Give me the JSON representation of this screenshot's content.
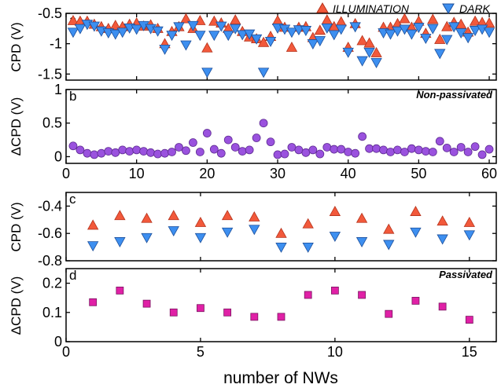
{
  "colors": {
    "illumination": "#f2593b",
    "illumination_edge": "#b5331c",
    "dark": "#3d8ff0",
    "dark_edge": "#1d4f9a",
    "dcpd_top": "#9a52de",
    "dcpd_top_edge": "#5e2b92",
    "dcpd_bottom": "#e020a6",
    "dcpd_bottom_edge": "#7a1560"
  },
  "legend": {
    "illumination": "ILLUMINATION",
    "dark": "DARK"
  },
  "panels": {
    "a": {
      "letter": "a",
      "ylabel": "CPD (V)"
    },
    "b": {
      "letter": "b",
      "ylabel": "ΔCPD (V)",
      "note": "Non-passivated"
    },
    "c": {
      "letter": "c",
      "ylabel": "CPD (V)"
    },
    "d": {
      "letter": "d",
      "ylabel": "ΔCPD (V)",
      "note": "Passivated"
    }
  },
  "xlabel": "number of NWs",
  "chart_data": [
    {
      "panel": "a",
      "type": "scatter",
      "xlim": [
        0,
        61
      ],
      "ylim": [
        -1.6,
        -0.5
      ],
      "xticks": [
        0,
        10,
        20,
        30,
        40,
        50,
        60
      ],
      "yticks": [
        -0.5,
        -1,
        -1.5
      ],
      "ytick_labels": [
        "-0.5",
        "-1",
        "-1.5"
      ],
      "xtick_labels_shown": false,
      "series": [
        {
          "name": "ILLUMINATION",
          "marker": "triangle-up",
          "x": [
            1,
            2,
            3,
            4,
            5,
            6,
            7,
            8,
            9,
            10,
            11,
            12,
            13,
            14,
            15,
            16,
            17,
            18,
            19,
            20,
            21,
            22,
            23,
            24,
            25,
            26,
            27,
            28,
            29,
            30,
            31,
            32,
            33,
            34,
            35,
            36,
            37,
            38,
            39,
            40,
            41,
            42,
            43,
            44,
            45,
            46,
            47,
            48,
            49,
            50,
            51,
            52,
            53,
            54,
            55,
            56,
            57,
            58,
            59,
            60
          ],
          "y": [
            -0.62,
            -0.63,
            -0.63,
            -0.68,
            -0.72,
            -0.75,
            -0.7,
            -0.72,
            -0.68,
            -0.66,
            -0.71,
            -0.69,
            -0.75,
            -1.0,
            -0.8,
            -0.72,
            -0.59,
            -0.75,
            -0.62,
            -1.07,
            -0.63,
            -0.66,
            -0.75,
            -0.61,
            -0.8,
            -0.89,
            -0.92,
            -0.98,
            -0.88,
            -0.62,
            -0.73,
            -1.06,
            -0.73,
            -0.72,
            -0.9,
            -0.78,
            -0.61,
            -0.72,
            -0.64,
            -1.06,
            -0.67,
            -0.95,
            -0.99,
            -1.15,
            -0.73,
            -0.73,
            -0.67,
            -0.59,
            -0.73,
            -0.63,
            -0.83,
            -0.6,
            -0.93,
            -0.72,
            -0.65,
            -0.68,
            -0.81,
            -0.63,
            -0.65,
            -0.66
          ]
        },
        {
          "name": "DARK",
          "marker": "triangle-down",
          "x": [
            1,
            2,
            3,
            4,
            5,
            6,
            7,
            8,
            9,
            10,
            11,
            12,
            13,
            14,
            15,
            16,
            17,
            18,
            19,
            20,
            21,
            22,
            23,
            24,
            25,
            26,
            27,
            28,
            29,
            30,
            31,
            32,
            33,
            34,
            35,
            36,
            37,
            38,
            39,
            40,
            41,
            42,
            43,
            44,
            45,
            46,
            47,
            48,
            49,
            50,
            51,
            52,
            53,
            54,
            55,
            56,
            57,
            58,
            59,
            60
          ],
          "y": [
            -0.81,
            -0.75,
            -0.68,
            -0.71,
            -0.79,
            -0.82,
            -0.84,
            -0.81,
            -0.74,
            -0.76,
            -0.7,
            -0.75,
            -0.79,
            -1.09,
            -0.86,
            -0.72,
            -1.02,
            -0.7,
            -0.86,
            -1.47,
            -0.86,
            -0.71,
            -0.86,
            -0.75,
            -0.85,
            -0.84,
            -0.92,
            -1.47,
            -0.96,
            -0.74,
            -0.76,
            -0.81,
            -0.77,
            -0.78,
            -1.0,
            -0.95,
            -0.74,
            -0.85,
            -0.76,
            -1.14,
            -0.72,
            -1.28,
            -1.14,
            -1.31,
            -0.82,
            -0.84,
            -0.79,
            -0.76,
            -0.84,
            -0.73,
            -0.91,
            -0.75,
            -1.16,
            -0.93,
            -0.72,
            -0.82,
            -0.9,
            -0.78,
            -0.76,
            -0.81
          ]
        }
      ]
    },
    {
      "panel": "b",
      "type": "scatter",
      "xlim": [
        0,
        61
      ],
      "ylim": [
        -0.1,
        1.0
      ],
      "xticks": [
        0,
        10,
        20,
        30,
        40,
        50,
        60
      ],
      "yticks": [
        0,
        0.5,
        1
      ],
      "ytick_labels": [
        "0",
        "0.5",
        "1"
      ],
      "xtick_labels_shown": true,
      "series": [
        {
          "marker": "circle",
          "x": [
            1,
            2,
            3,
            4,
            5,
            6,
            7,
            8,
            9,
            10,
            11,
            12,
            13,
            14,
            15,
            16,
            17,
            18,
            19,
            20,
            21,
            22,
            23,
            24,
            25,
            26,
            27,
            28,
            29,
            30,
            31,
            32,
            33,
            34,
            35,
            36,
            37,
            38,
            39,
            40,
            41,
            42,
            43,
            44,
            45,
            46,
            47,
            48,
            49,
            50,
            51,
            52,
            53,
            54,
            55,
            56,
            57,
            58,
            59,
            60
          ],
          "y": [
            0.16,
            0.1,
            0.05,
            0.03,
            0.05,
            0.08,
            0.06,
            0.1,
            0.08,
            0.1,
            0.08,
            0.06,
            0.04,
            0.05,
            0.07,
            0.14,
            0.09,
            0.21,
            0.07,
            0.35,
            0.11,
            0.05,
            0.25,
            0.14,
            0.08,
            0.1,
            0.28,
            0.5,
            0.22,
            0.03,
            0.04,
            0.14,
            0.1,
            0.06,
            0.1,
            0.04,
            0.14,
            0.11,
            0.11,
            0.07,
            0.05,
            0.3,
            0.12,
            0.12,
            0.1,
            0.07,
            0.1,
            0.07,
            0.12,
            0.1,
            0.08,
            0.07,
            0.23,
            0.13,
            0.07,
            0.14,
            0.07,
            0.15,
            0.03,
            0.11
          ]
        }
      ]
    },
    {
      "panel": "c",
      "type": "scatter",
      "xlim": [
        0,
        16
      ],
      "ylim": [
        -0.8,
        -0.3
      ],
      "xticks": [
        0,
        5,
        10,
        15
      ],
      "yticks": [
        -0.4,
        -0.6,
        -0.8
      ],
      "ytick_labels": [
        "-0.4",
        "-0.6",
        "-0.8"
      ],
      "xtick_labels_shown": false,
      "series": [
        {
          "name": "ILLUMINATION",
          "marker": "triangle-up",
          "x": [
            1,
            2,
            3,
            4,
            5,
            6,
            7,
            8,
            9,
            10,
            11,
            12,
            13,
            14,
            15
          ],
          "y": [
            -0.54,
            -0.47,
            -0.49,
            -0.47,
            -0.52,
            -0.47,
            -0.48,
            -0.6,
            -0.53,
            -0.44,
            -0.49,
            -0.57,
            -0.44,
            -0.51,
            -0.52
          ]
        },
        {
          "name": "DARK",
          "marker": "triangle-down",
          "x": [
            1,
            2,
            3,
            4,
            5,
            6,
            7,
            8,
            9,
            10,
            11,
            12,
            13,
            14,
            15
          ],
          "y": [
            -0.69,
            -0.66,
            -0.63,
            -0.58,
            -0.63,
            -0.59,
            -0.57,
            -0.7,
            -0.7,
            -0.62,
            -0.66,
            -0.68,
            -0.59,
            -0.64,
            -0.61
          ]
        }
      ]
    },
    {
      "panel": "d",
      "type": "scatter",
      "xlim": [
        0,
        16
      ],
      "ylim": [
        0,
        0.25
      ],
      "xticks": [
        0,
        5,
        10,
        15
      ],
      "yticks": [
        0,
        0.1,
        0.2
      ],
      "ytick_labels": [
        "0",
        "0.1",
        "0.2"
      ],
      "xtick_labels_shown": true,
      "series": [
        {
          "marker": "square",
          "x": [
            1,
            2,
            3,
            4,
            5,
            6,
            7,
            8,
            9,
            10,
            11,
            12,
            13,
            14,
            15
          ],
          "y": [
            0.135,
            0.175,
            0.13,
            0.1,
            0.115,
            0.1,
            0.085,
            0.085,
            0.16,
            0.175,
            0.16,
            0.095,
            0.14,
            0.12,
            0.075
          ]
        }
      ]
    }
  ]
}
